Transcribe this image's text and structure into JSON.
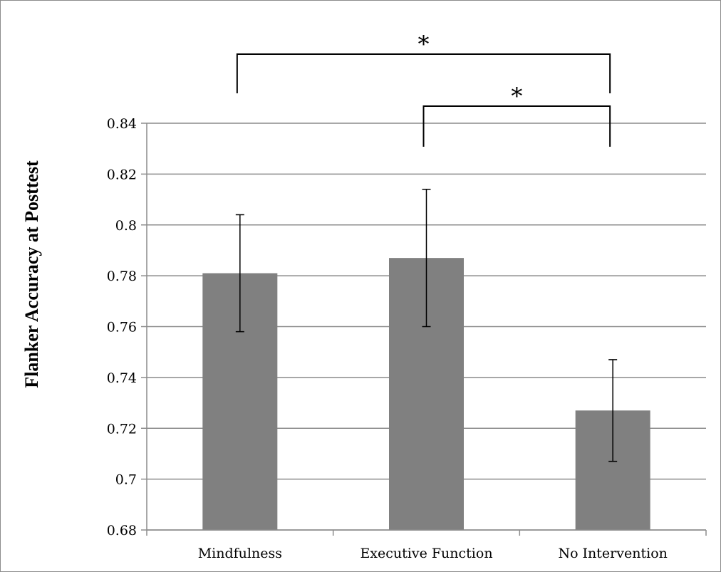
{
  "chart_data": {
    "type": "bar",
    "title": "",
    "xlabel": "",
    "ylabel": "Flanker Accuracy at Posttest",
    "categories": [
      "Mindfulness",
      "Executive Function",
      "No Intervention"
    ],
    "values": [
      0.781,
      0.787,
      0.727
    ],
    "error_low": [
      0.758,
      0.76,
      0.707
    ],
    "error_high": [
      0.804,
      0.814,
      0.747
    ],
    "ylim": [
      0.68,
      0.84
    ],
    "yticks": [
      "0.68",
      "0.7",
      "0.72",
      "0.74",
      "0.76",
      "0.78",
      "0.8",
      "0.82",
      "0.84"
    ],
    "grid": true,
    "legend": "none",
    "bar_color": "#808080",
    "significance": [
      {
        "from": "Mindfulness",
        "to": "No Intervention",
        "label": "*"
      },
      {
        "from": "Executive Function",
        "to": "No Intervention",
        "label": "*"
      }
    ]
  }
}
